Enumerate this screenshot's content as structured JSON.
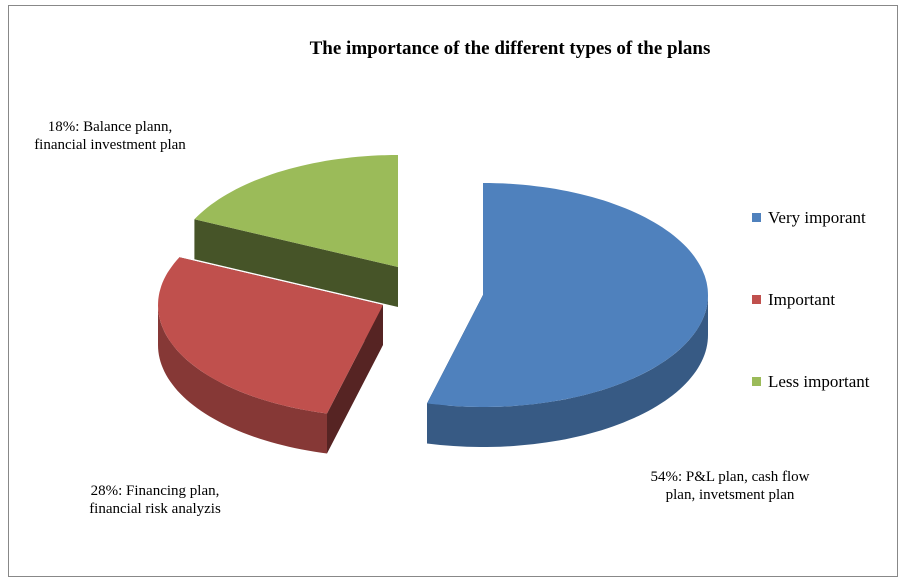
{
  "chart_data": {
    "type": "pie3d",
    "title": "The importance of the different types of the plans",
    "categories": [
      "Very imporant",
      "Important",
      "Less important"
    ],
    "values": [
      54,
      28,
      18
    ],
    "value_labels": [
      "54%: P&L plan, cash flow plan, invetsment plan",
      "28%: Financing plan, financial risk analyzis",
      "18%: Balance plann, financial investment plan"
    ],
    "colors": [
      "#4f81bd",
      "#c0504d",
      "#9bbb59"
    ],
    "legend": "right"
  }
}
